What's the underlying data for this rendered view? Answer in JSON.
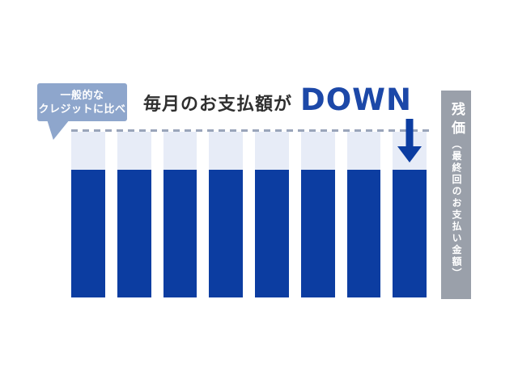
{
  "figure": {
    "background": "#ffffff"
  },
  "callout": {
    "lines": [
      "一般的な",
      "クレジットに比べ"
    ],
    "bg_color": "#8ea6cc",
    "text_color": "#ffffff"
  },
  "heading": {
    "jp_text": "毎月のお支払額が",
    "down_text": "DOWN",
    "jp_color": "#2f2f2f",
    "down_color": "#1c48a8"
  },
  "residual_banner": {
    "main_text": "残価",
    "sub_text": "（最終回のお支払い金額）",
    "bg_color": "#9aa0aa",
    "text_color": "#ffffff"
  },
  "chart_data": {
    "type": "bar",
    "title": "毎月のお支払額が DOWN",
    "categories": [
      "",
      "",
      "",
      "",
      "",
      "",
      "",
      ""
    ],
    "series": [
      {
        "name": "dark-blue-segment-monthly-payment",
        "color": "#0c3da1",
        "values": [
          77,
          77,
          77,
          77,
          77,
          77,
          77,
          77
        ]
      },
      {
        "name": "light-blue-segment-top",
        "color": "#e7ecf7",
        "values": [
          23,
          23,
          23,
          23,
          23,
          23,
          23,
          23
        ]
      }
    ],
    "ylim": [
      0,
      100
    ],
    "grid": false,
    "legend": "none",
    "reference_line": {
      "style": "dashed",
      "y": 100,
      "color": "#9aa5ba"
    },
    "arrow": {
      "type": "down",
      "bar_index": 7,
      "color": "#0c3da1"
    }
  }
}
